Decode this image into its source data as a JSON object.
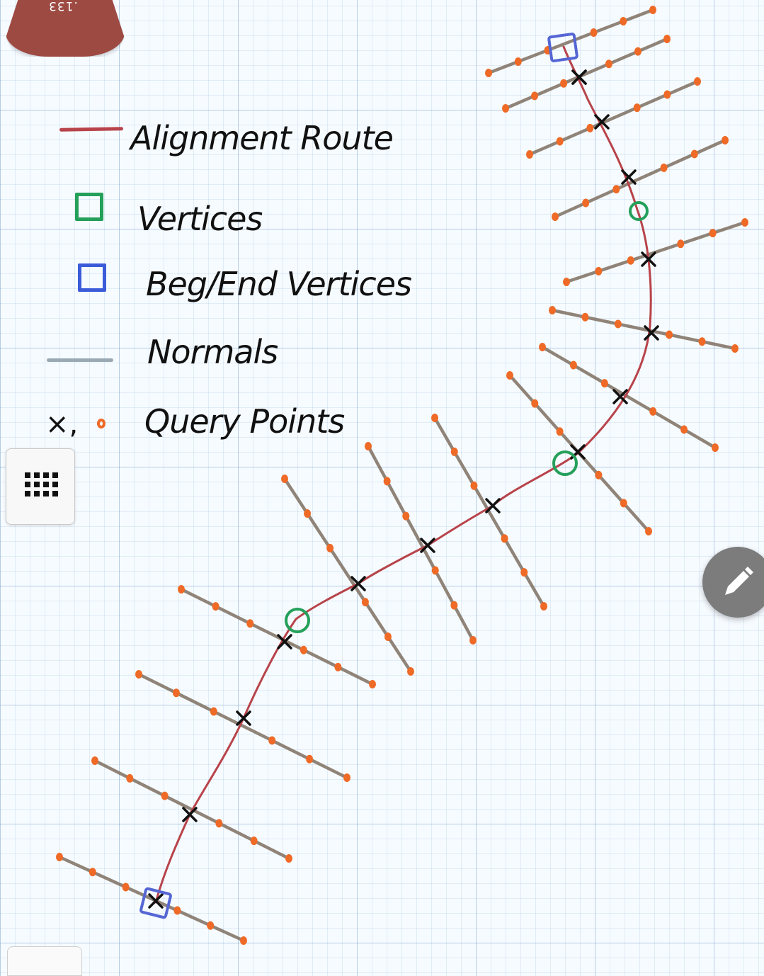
{
  "page_tag": {
    "number": ".133"
  },
  "legend": {
    "items": [
      {
        "label": "Alignment Route",
        "symbol": "red-line",
        "color": "#b8434a"
      },
      {
        "label": "Vertices",
        "symbol": "green-square",
        "color": "#25a05a"
      },
      {
        "label": "Beg/End Vertices",
        "symbol": "blue-square",
        "color": "#3b5bd9"
      },
      {
        "label": "Normals",
        "symbol": "gray-line",
        "color": "#9aa9b4"
      },
      {
        "label": "Query Points",
        "symbol": "x-and-dot",
        "color": "#ee6a26",
        "prefix": "×,"
      }
    ]
  },
  "colors": {
    "route": "#b8434a",
    "vertex": "#25a05a",
    "end_vertex": "#5566d4",
    "normal": "#85786b",
    "query_dot": "#ee6a26",
    "query_x": "#111111",
    "page_tag": "#9d4a43"
  },
  "toolbar": {
    "grid_button_icon": "grid-dots-icon",
    "pencil_button_icon": "pencil-icon"
  }
}
